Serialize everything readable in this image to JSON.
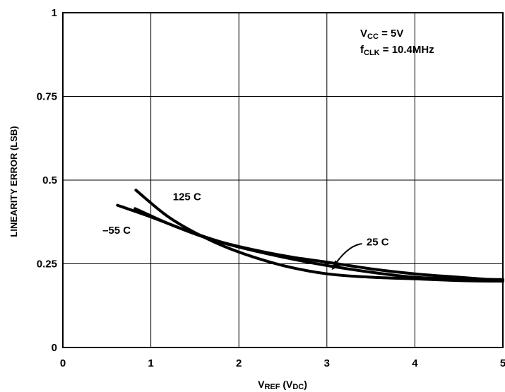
{
  "chart_data": {
    "type": "line",
    "title": "",
    "xlabel": {
      "main": "V",
      "sub": "REF",
      "unit_open": " (V",
      "unit_sub": "DC",
      "unit_close": ")"
    },
    "ylabel": "LINEARITY ERROR (LSB)",
    "xlim": [
      0,
      5
    ],
    "ylim": [
      0,
      1
    ],
    "x_ticks": [
      "0",
      "1",
      "2",
      "3",
      "4",
      "5"
    ],
    "y_ticks": [
      "0",
      "0.25",
      "0.5",
      "0.75",
      "1"
    ],
    "grid": true,
    "conditions": [
      {
        "main": "V",
        "sub": "CC",
        "rest": " = 5V"
      },
      {
        "main": "f",
        "sub": "CLK",
        "rest": " = 10.4MHz"
      }
    ],
    "series": [
      {
        "name": "125 C",
        "x": [
          0.83,
          1.2,
          1.6,
          2.0,
          2.5,
          3.0,
          3.5,
          4.0,
          4.5,
          5.0
        ],
        "y": [
          0.47,
          0.39,
          0.33,
          0.285,
          0.245,
          0.22,
          0.21,
          0.205,
          0.2,
          0.198
        ]
      },
      {
        "name": "-55 C",
        "x": [
          0.62,
          1.0,
          1.4,
          1.8,
          2.2,
          2.6,
          3.0,
          3.5,
          4.0,
          4.5,
          5.0
        ],
        "y": [
          0.425,
          0.39,
          0.35,
          0.315,
          0.29,
          0.27,
          0.255,
          0.235,
          0.22,
          0.21,
          0.2
        ]
      },
      {
        "name": "25 C",
        "x": [
          0.82,
          1.2,
          1.6,
          2.0,
          2.5,
          3.0,
          3.5,
          4.0,
          4.5,
          5.0
        ],
        "y": [
          0.415,
          0.37,
          0.33,
          0.3,
          0.27,
          0.245,
          0.225,
          0.21,
          0.205,
          0.203
        ]
      }
    ],
    "annotations": [
      {
        "text": "125 C",
        "x": 1.25,
        "y": 0.44
      },
      {
        "text": "–55 C",
        "x": 0.45,
        "y": 0.34
      },
      {
        "text": "25 C",
        "x": 3.45,
        "y": 0.305
      }
    ]
  }
}
